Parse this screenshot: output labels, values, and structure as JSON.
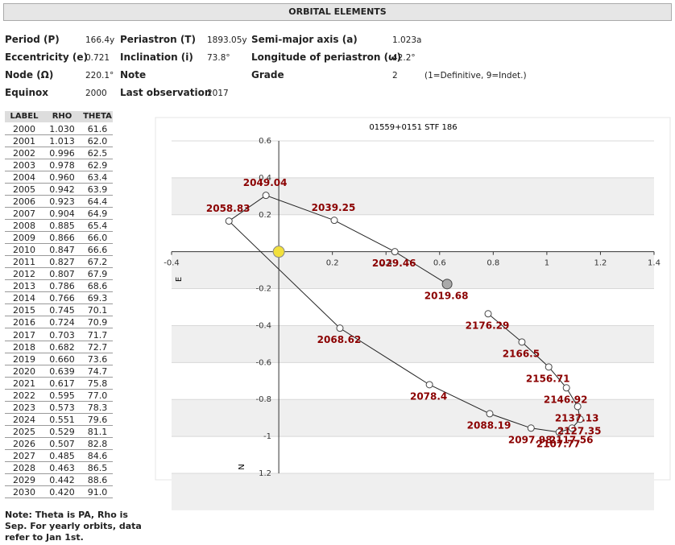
{
  "header": {
    "title": "ORBITAL ELEMENTS"
  },
  "elements": {
    "rows": [
      [
        "Period (P)",
        "166.4y",
        "Periastron (T)",
        "1893.05y",
        "Semi-major axis (a)",
        "1.023a",
        null
      ],
      [
        "Eccentricity (e)",
        "0.721",
        "Inclination (i)",
        "73.8°",
        "Longitude of periastron (ω)",
        "42.2°",
        null
      ],
      [
        "Node (Ω)",
        "220.1°",
        "Note",
        null,
        "Grade",
        "2",
        "(1=Definitive, 9=Indet.)"
      ],
      [
        "Equinox",
        "2000",
        "Last observation",
        "2017",
        null,
        null,
        null
      ]
    ]
  },
  "table": {
    "columns": [
      "LABEL",
      "RHO",
      "THETA"
    ],
    "rows": [
      [
        "2000",
        "1.030",
        "61.6"
      ],
      [
        "2001",
        "1.013",
        "62.0"
      ],
      [
        "2002",
        "0.996",
        "62.5"
      ],
      [
        "2003",
        "0.978",
        "62.9"
      ],
      [
        "2004",
        "0.960",
        "63.4"
      ],
      [
        "2005",
        "0.942",
        "63.9"
      ],
      [
        "2006",
        "0.923",
        "64.4"
      ],
      [
        "2007",
        "0.904",
        "64.9"
      ],
      [
        "2008",
        "0.885",
        "65.4"
      ],
      [
        "2009",
        "0.866",
        "66.0"
      ],
      [
        "2010",
        "0.847",
        "66.6"
      ],
      [
        "2011",
        "0.827",
        "67.2"
      ],
      [
        "2012",
        "0.807",
        "67.9"
      ],
      [
        "2013",
        "0.786",
        "68.6"
      ],
      [
        "2014",
        "0.766",
        "69.3"
      ],
      [
        "2015",
        "0.745",
        "70.1"
      ],
      [
        "2016",
        "0.724",
        "70.9"
      ],
      [
        "2017",
        "0.703",
        "71.7"
      ],
      [
        "2018",
        "0.682",
        "72.7"
      ],
      [
        "2019",
        "0.660",
        "73.6"
      ],
      [
        "2020",
        "0.639",
        "74.7"
      ],
      [
        "2021",
        "0.617",
        "75.8"
      ],
      [
        "2022",
        "0.595",
        "77.0"
      ],
      [
        "2023",
        "0.573",
        "78.3"
      ],
      [
        "2024",
        "0.551",
        "79.6"
      ],
      [
        "2025",
        "0.529",
        "81.1"
      ],
      [
        "2026",
        "0.507",
        "82.8"
      ],
      [
        "2027",
        "0.485",
        "84.6"
      ],
      [
        "2028",
        "0.463",
        "86.5"
      ],
      [
        "2029",
        "0.442",
        "88.6"
      ],
      [
        "2030",
        "0.420",
        "91.0"
      ]
    ]
  },
  "note": "Note: Theta is PA, Rho is Sep. For yearly orbits, data refer to Jan 1st.",
  "chart_data": {
    "type": "scatter",
    "title": "01559+0151 STF 186",
    "x_label": "E",
    "y_label": "N",
    "xlim": [
      -0.4,
      1.4
    ],
    "ylim": [
      -1.2,
      0.6
    ],
    "xticks": [
      -0.4,
      0.2,
      0.4,
      0.6,
      0.8,
      1.0,
      1.2,
      1.4
    ],
    "yticks": [
      0.6,
      0.4,
      0.2,
      -0.2,
      -0.4,
      -0.6,
      -0.8,
      -1.0,
      {
        "value": -1.2,
        "label": "1.2"
      }
    ],
    "grid": true,
    "primary_star": {
      "x": 0,
      "y": 0,
      "color": "#f2e03c"
    },
    "series": [
      {
        "color": "#8b0000",
        "labels": [
          "2019.68",
          "2029.46",
          "2039.25",
          "2049.04",
          "2058.83",
          "2068.62",
          "2078.4",
          "2088.19",
          "2097.98",
          "2107.77",
          "2117.56",
          "2127.35",
          "2137.13",
          "2146.92",
          "2156.71",
          "2166.5",
          "2176.29"
        ],
        "x": [
          0.628,
          0.433,
          0.207,
          -0.048,
          -0.186,
          0.228,
          0.562,
          0.787,
          0.941,
          1.046,
          1.094,
          1.124,
          1.115,
          1.073,
          1.007,
          0.907,
          0.781
        ],
        "values": [
          -0.175,
          0.0,
          0.17,
          0.305,
          0.166,
          -0.414,
          -0.72,
          -0.877,
          -0.955,
          -0.977,
          -0.955,
          -0.907,
          -0.838,
          -0.737,
          -0.624,
          -0.489,
          -0.336
        ]
      }
    ]
  }
}
